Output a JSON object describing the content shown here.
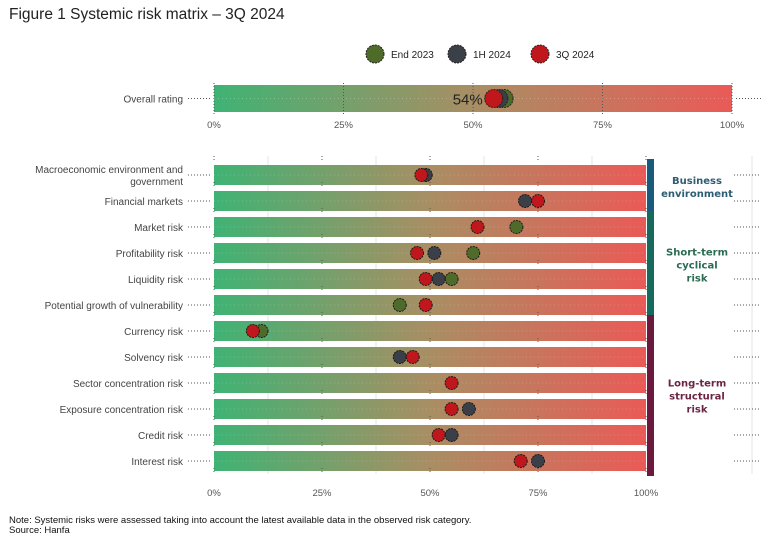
{
  "title": "Figure 1 Systemic risk matrix – 3Q 2024",
  "note": "Note: Systemic risks were assessed taking into account the latest available data in the observed risk category.",
  "source": "Source: Hanfa",
  "chart_data": {
    "type": "scatter",
    "title": "Figure 1 Systemic risk matrix – 3Q 2024",
    "xlabel": "",
    "ylabel": "",
    "xlim": [
      0,
      100
    ],
    "x_tick_labels": [
      "0%",
      "25%",
      "50%",
      "75%",
      "100%"
    ],
    "legend": {
      "placement": "top-center",
      "entries": [
        {
          "name": "End 2023",
          "color": "#4f6b2a"
        },
        {
          "name": "1H 2024",
          "color": "#3b3f47"
        },
        {
          "name": "3Q 2024",
          "color": "#c0171d"
        }
      ]
    },
    "gradient_colors": {
      "low": "#3fb374",
      "mid": "#a98e63",
      "high": "#ea5a57"
    },
    "overall": {
      "label": "Overall rating",
      "value_label": "54%",
      "values": {
        "End 2023": 56,
        "1H 2024": 55,
        "3Q 2024": 54
      }
    },
    "categories": [
      "Macroeconomic environment and government",
      "Financial markets",
      "Market risk",
      "Profitability risk",
      "Liquidity risk",
      "Potential growth of vulnerability",
      "Currency risk",
      "Solvency risk",
      "Sector concentration risk",
      "Exposure concentration risk",
      "Credit risk",
      "Interest risk"
    ],
    "series": [
      {
        "name": "End 2023",
        "values": [
          49,
          null,
          70,
          60,
          55,
          43,
          11,
          null,
          null,
          null,
          null,
          null
        ]
      },
      {
        "name": "1H 2024",
        "values": [
          49,
          72,
          null,
          51,
          52,
          null,
          null,
          43,
          null,
          59,
          55,
          75
        ]
      },
      {
        "name": "3Q 2024",
        "values": [
          48,
          75,
          61,
          47,
          49,
          49,
          9,
          46,
          55,
          55,
          52,
          71
        ]
      }
    ],
    "groups": [
      {
        "label_lines": [
          "Business",
          "environment"
        ],
        "color": "#1a5a7c",
        "text_color": "#2d5d72",
        "from": 0,
        "to": 1
      },
      {
        "label_lines": [
          "Short-term",
          "cyclical",
          "risk"
        ],
        "color": "#176a5c",
        "text_color": "#2a6b52",
        "from": 2,
        "to": 5
      },
      {
        "label_lines": [
          "Long-term",
          "structural",
          "risk"
        ],
        "color": "#6b1a3e",
        "text_color": "#6b2445",
        "from": 6,
        "to": 11
      }
    ]
  }
}
